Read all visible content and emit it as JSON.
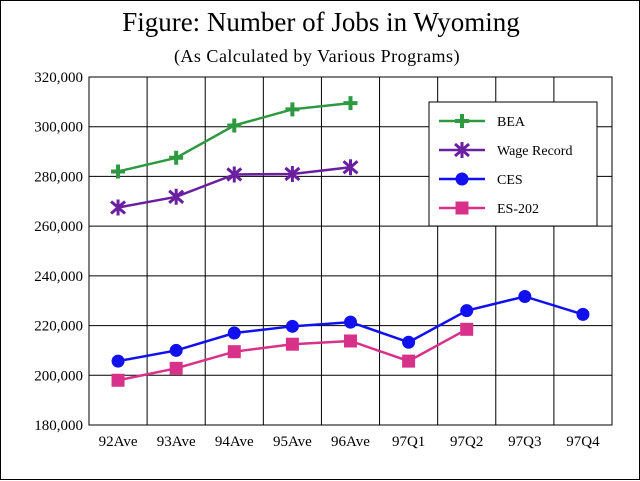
{
  "chart_data": {
    "type": "line",
    "title": "Figure:  Number of Jobs in Wyoming",
    "subtitle": "(As Calculated by Various Programs)",
    "xlabel": "",
    "ylabel": "",
    "categories": [
      "92Ave",
      "93Ave",
      "94Ave",
      "95Ave",
      "96Ave",
      "97Q1",
      "97Q2",
      "97Q3",
      "97Q4"
    ],
    "y_ticks": [
      "180,000",
      "200,000",
      "220,000",
      "240,000",
      "260,000",
      "280,000",
      "300,000",
      "320,000"
    ],
    "ylim": [
      180000,
      320000
    ],
    "grid": true,
    "legend_position": "top-right",
    "series": [
      {
        "name": "BEA",
        "color": "#2e9940",
        "marker": "plus",
        "values": [
          282000,
          287500,
          300500,
          307000,
          309500,
          null,
          null,
          null,
          null
        ]
      },
      {
        "name": "Wage Record",
        "color": "#6a1fa0",
        "marker": "star",
        "values": [
          267500,
          271800,
          280800,
          281000,
          283700,
          null,
          null,
          null,
          null
        ]
      },
      {
        "name": "CES",
        "color": "#1010f0",
        "marker": "circle",
        "values": [
          205700,
          210000,
          217000,
          219700,
          221400,
          213300,
          226000,
          231700,
          224500
        ]
      },
      {
        "name": "ES-202",
        "color": "#d8318a",
        "marker": "square",
        "values": [
          198000,
          202800,
          209500,
          212500,
          213800,
          205700,
          218500,
          null,
          null
        ]
      }
    ]
  }
}
